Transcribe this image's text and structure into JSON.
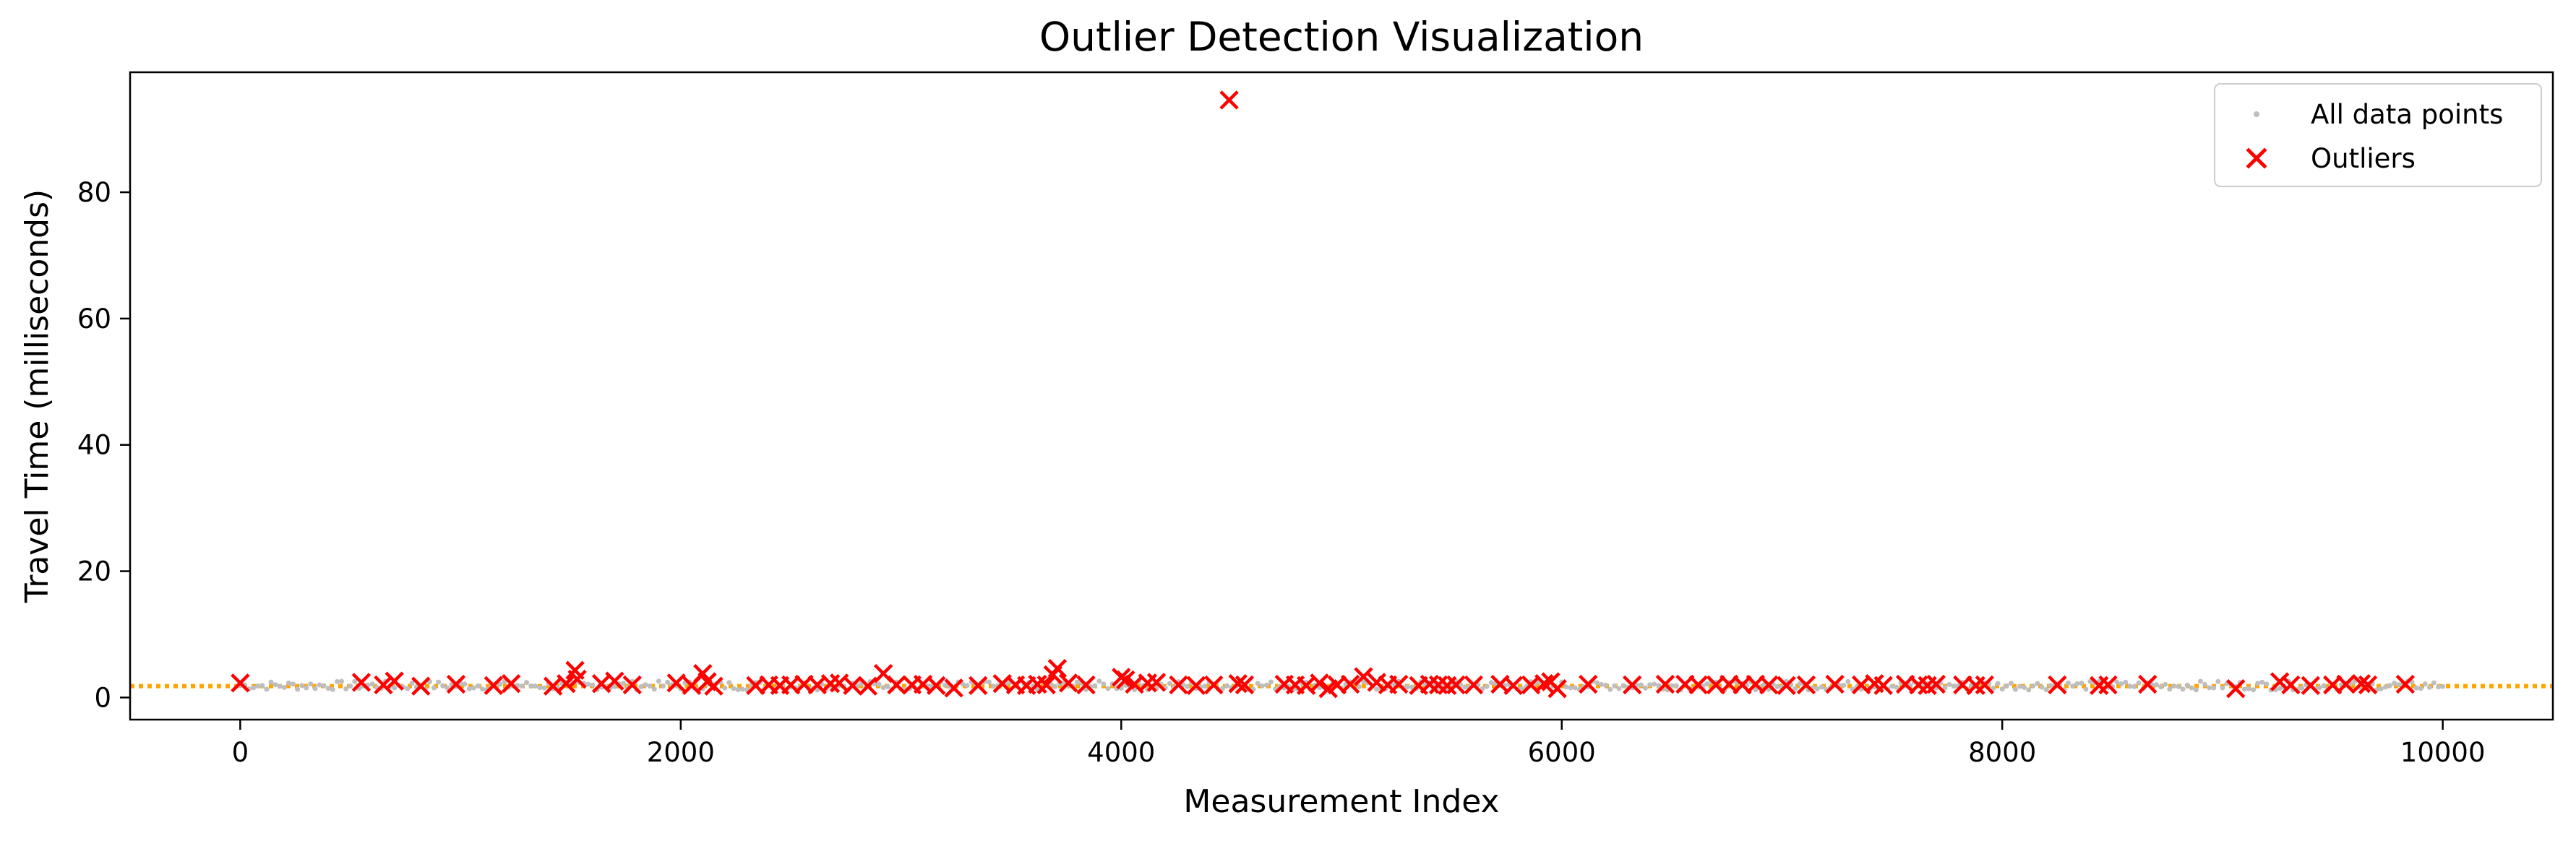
{
  "chart_data": {
    "type": "scatter",
    "title": "Outlier Detection Visualization",
    "xlabel": "Measurement Index",
    "ylabel": "Travel Time (milliseconds)",
    "xlim": [
      -500,
      10500
    ],
    "ylim": [
      -3.5,
      99
    ],
    "x_ticks": [
      0,
      2000,
      4000,
      6000,
      8000,
      10000
    ],
    "y_ticks": [
      0,
      20,
      40,
      60,
      80
    ],
    "grid": false,
    "legend_position": "top-right",
    "reference_line": {
      "y": 1.8,
      "color": "#FFA500",
      "style": "dotted"
    },
    "series": [
      {
        "name": "All data points",
        "marker": "dot",
        "color": "#BEBEBE",
        "x_range": [
          0,
          10000
        ],
        "y_range": [
          1.2,
          2.6
        ]
      },
      {
        "name": "Outliers",
        "marker": "x",
        "color": "#FF0000",
        "points": [
          [
            0,
            2.3
          ],
          [
            550,
            2.4
          ],
          [
            650,
            2.0
          ],
          [
            700,
            2.6
          ],
          [
            820,
            1.8
          ],
          [
            980,
            2.1
          ],
          [
            1150,
            1.9
          ],
          [
            1230,
            2.2
          ],
          [
            1420,
            1.8
          ],
          [
            1480,
            2.2
          ],
          [
            1520,
            4.3
          ],
          [
            1530,
            2.9
          ],
          [
            1640,
            2.2
          ],
          [
            1700,
            2.6
          ],
          [
            1780,
            2.0
          ],
          [
            1980,
            2.3
          ],
          [
            2050,
            1.9
          ],
          [
            2100,
            3.8
          ],
          [
            2120,
            2.5
          ],
          [
            2150,
            1.8
          ],
          [
            2340,
            1.9
          ],
          [
            2400,
            2.0
          ],
          [
            2450,
            1.9
          ],
          [
            2500,
            2.0
          ],
          [
            2560,
            2.1
          ],
          [
            2620,
            2.0
          ],
          [
            2680,
            2.2
          ],
          [
            2720,
            2.3
          ],
          [
            2780,
            1.9
          ],
          [
            2850,
            1.8
          ],
          [
            2920,
            3.8
          ],
          [
            2980,
            2.0
          ],
          [
            3050,
            2.0
          ],
          [
            3100,
            2.1
          ],
          [
            3160,
            1.9
          ],
          [
            3240,
            1.5
          ],
          [
            3350,
            1.9
          ],
          [
            3460,
            2.2
          ],
          [
            3520,
            2.0
          ],
          [
            3570,
            1.9
          ],
          [
            3620,
            2.1
          ],
          [
            3660,
            2.0
          ],
          [
            3690,
            3.6
          ],
          [
            3710,
            4.6
          ],
          [
            3760,
            2.3
          ],
          [
            3840,
            2.0
          ],
          [
            4000,
            3.2
          ],
          [
            4020,
            2.8
          ],
          [
            4060,
            2.1
          ],
          [
            4120,
            2.3
          ],
          [
            4160,
            2.4
          ],
          [
            4260,
            2.0
          ],
          [
            4340,
            1.9
          ],
          [
            4420,
            2.0
          ],
          [
            4490,
            94.6
          ],
          [
            4530,
            2.2
          ],
          [
            4560,
            2.0
          ],
          [
            4740,
            2.1
          ],
          [
            4790,
            2.0
          ],
          [
            4840,
            1.9
          ],
          [
            4900,
            2.3
          ],
          [
            4940,
            1.4
          ],
          [
            4980,
            2.0
          ],
          [
            5040,
            2.1
          ],
          [
            5100,
            3.3
          ],
          [
            5160,
            2.4
          ],
          [
            5210,
            2.0
          ],
          [
            5260,
            2.1
          ],
          [
            5350,
            1.9
          ],
          [
            5400,
            2.1
          ],
          [
            5440,
            2.0
          ],
          [
            5480,
            1.9
          ],
          [
            5520,
            2.0
          ],
          [
            5600,
            2.0
          ],
          [
            5720,
            2.1
          ],
          [
            5780,
            1.9
          ],
          [
            5860,
            2.0
          ],
          [
            5920,
            2.2
          ],
          [
            5950,
            2.5
          ],
          [
            5980,
            1.4
          ],
          [
            6120,
            2.1
          ],
          [
            6320,
            2.0
          ],
          [
            6470,
            2.1
          ],
          [
            6560,
            2.1
          ],
          [
            6620,
            2.0
          ],
          [
            6700,
            2.0
          ],
          [
            6760,
            2.1
          ],
          [
            6820,
            2.0
          ],
          [
            6880,
            2.1
          ],
          [
            6940,
            2.0
          ],
          [
            7020,
            1.9
          ],
          [
            7110,
            2.0
          ],
          [
            7240,
            2.1
          ],
          [
            7360,
            2.0
          ],
          [
            7420,
            2.2
          ],
          [
            7460,
            1.9
          ],
          [
            7560,
            2.1
          ],
          [
            7620,
            2.0
          ],
          [
            7660,
            1.9
          ],
          [
            7700,
            2.1
          ],
          [
            7820,
            2.0
          ],
          [
            7880,
            1.9
          ],
          [
            7920,
            2.0
          ],
          [
            8250,
            2.0
          ],
          [
            8440,
            1.9
          ],
          [
            8480,
            2.0
          ],
          [
            8660,
            2.1
          ],
          [
            9060,
            1.4
          ],
          [
            9260,
            2.5
          ],
          [
            9310,
            2.0
          ],
          [
            9400,
            1.9
          ],
          [
            9500,
            2.0
          ],
          [
            9560,
            2.1
          ],
          [
            9630,
            2.2
          ],
          [
            9660,
            2.0
          ],
          [
            9830,
            2.1
          ]
        ]
      }
    ]
  }
}
